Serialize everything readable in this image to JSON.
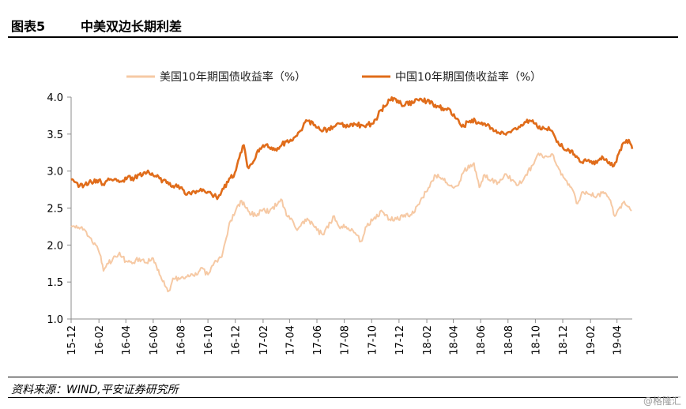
{
  "header": {
    "figure_no": "图表5",
    "title": "中美双边长期利差"
  },
  "source": "资料来源：WIND,平安证券研究所",
  "watermark": "@格隆汇",
  "chart_data": {
    "type": "line",
    "title": "中美双边长期利差",
    "xlabel": "",
    "ylabel": "",
    "ylim": [
      1.0,
      4.0
    ],
    "yticks": [
      "1.0",
      "1.5",
      "2.0",
      "2.5",
      "3.0",
      "3.5",
      "4.0"
    ],
    "xlim": [
      "2015-12-01",
      "2019-05-05"
    ],
    "xticks": [
      {
        "label": "15-12",
        "date": "2015-12-01"
      },
      {
        "label": "16-02",
        "date": "2016-02-01"
      },
      {
        "label": "16-04",
        "date": "2016-04-01"
      },
      {
        "label": "16-06",
        "date": "2016-06-01"
      },
      {
        "label": "16-08",
        "date": "2016-08-01"
      },
      {
        "label": "16-10",
        "date": "2016-10-01"
      },
      {
        "label": "16-12",
        "date": "2016-12-01"
      },
      {
        "label": "17-02",
        "date": "2017-02-01"
      },
      {
        "label": "17-04",
        "date": "2017-04-01"
      },
      {
        "label": "17-06",
        "date": "2017-06-01"
      },
      {
        "label": "17-08",
        "date": "2017-08-01"
      },
      {
        "label": "17-10",
        "date": "2017-10-01"
      },
      {
        "label": "17-12",
        "date": "2017-12-01"
      },
      {
        "label": "18-02",
        "date": "2018-02-01"
      },
      {
        "label": "18-04",
        "date": "2018-04-01"
      },
      {
        "label": "18-06",
        "date": "2018-06-01"
      },
      {
        "label": "18-08",
        "date": "2018-08-01"
      },
      {
        "label": "18-10",
        "date": "2018-10-01"
      },
      {
        "label": "18-12",
        "date": "2018-12-01"
      },
      {
        "label": "19-02",
        "date": "2019-02-01"
      },
      {
        "label": "19-04",
        "date": "2019-04-01"
      }
    ],
    "grid": false,
    "legend_position": "top",
    "series": [
      {
        "name": "美国10年期国债收益率（%）",
        "color": "#f6c9a4",
        "points": [
          [
            "2015-12-01",
            2.26
          ],
          [
            "2015-12-15",
            2.23
          ],
          [
            "2016-01-01",
            2.2
          ],
          [
            "2016-01-12",
            2.1
          ],
          [
            "2016-01-25",
            2.0
          ],
          [
            "2016-02-05",
            1.85
          ],
          [
            "2016-02-11",
            1.65
          ],
          [
            "2016-02-22",
            1.75
          ],
          [
            "2016-03-08",
            1.85
          ],
          [
            "2016-03-18",
            1.9
          ],
          [
            "2016-04-01",
            1.78
          ],
          [
            "2016-04-15",
            1.75
          ],
          [
            "2016-05-01",
            1.82
          ],
          [
            "2016-05-15",
            1.76
          ],
          [
            "2016-06-01",
            1.82
          ],
          [
            "2016-06-15",
            1.6
          ],
          [
            "2016-06-27",
            1.45
          ],
          [
            "2016-07-06",
            1.38
          ],
          [
            "2016-07-15",
            1.55
          ],
          [
            "2016-08-01",
            1.55
          ],
          [
            "2016-08-15",
            1.57
          ],
          [
            "2016-09-01",
            1.58
          ],
          [
            "2016-09-15",
            1.69
          ],
          [
            "2016-10-01",
            1.6
          ],
          [
            "2016-10-15",
            1.76
          ],
          [
            "2016-11-01",
            1.84
          ],
          [
            "2016-11-09",
            2.05
          ],
          [
            "2016-11-18",
            2.3
          ],
          [
            "2016-12-01",
            2.45
          ],
          [
            "2016-12-15",
            2.6
          ],
          [
            "2017-01-01",
            2.45
          ],
          [
            "2017-01-15",
            2.4
          ],
          [
            "2017-02-01",
            2.48
          ],
          [
            "2017-02-15",
            2.45
          ],
          [
            "2017-03-13",
            2.62
          ],
          [
            "2017-03-25",
            2.4
          ],
          [
            "2017-04-10",
            2.3
          ],
          [
            "2017-04-18",
            2.2
          ],
          [
            "2017-05-01",
            2.32
          ],
          [
            "2017-05-15",
            2.33
          ],
          [
            "2017-06-01",
            2.2
          ],
          [
            "2017-06-14",
            2.14
          ],
          [
            "2017-07-01",
            2.3
          ],
          [
            "2017-07-07",
            2.39
          ],
          [
            "2017-07-20",
            2.25
          ],
          [
            "2017-08-05",
            2.25
          ],
          [
            "2017-08-20",
            2.2
          ],
          [
            "2017-09-07",
            2.05
          ],
          [
            "2017-09-20",
            2.25
          ],
          [
            "2017-10-05",
            2.35
          ],
          [
            "2017-10-25",
            2.45
          ],
          [
            "2017-11-10",
            2.35
          ],
          [
            "2017-11-25",
            2.35
          ],
          [
            "2017-12-10",
            2.38
          ],
          [
            "2017-12-29",
            2.41
          ],
          [
            "2018-01-15",
            2.55
          ],
          [
            "2018-01-30",
            2.72
          ],
          [
            "2018-02-10",
            2.85
          ],
          [
            "2018-02-21",
            2.94
          ],
          [
            "2018-03-10",
            2.88
          ],
          [
            "2018-03-25",
            2.8
          ],
          [
            "2018-04-10",
            2.8
          ],
          [
            "2018-04-25",
            3.0
          ],
          [
            "2018-05-17",
            3.11
          ],
          [
            "2018-05-29",
            2.78
          ],
          [
            "2018-06-10",
            2.95
          ],
          [
            "2018-06-25",
            2.88
          ],
          [
            "2018-07-10",
            2.85
          ],
          [
            "2018-07-25",
            2.96
          ],
          [
            "2018-08-10",
            2.88
          ],
          [
            "2018-08-25",
            2.82
          ],
          [
            "2018-09-10",
            2.95
          ],
          [
            "2018-09-25",
            3.08
          ],
          [
            "2018-10-08",
            3.24
          ],
          [
            "2018-10-20",
            3.18
          ],
          [
            "2018-11-08",
            3.23
          ],
          [
            "2018-11-20",
            3.06
          ],
          [
            "2018-12-05",
            2.9
          ],
          [
            "2018-12-20",
            2.78
          ],
          [
            "2019-01-03",
            2.56
          ],
          [
            "2019-01-15",
            2.72
          ],
          [
            "2019-02-01",
            2.68
          ],
          [
            "2019-02-15",
            2.66
          ],
          [
            "2019-03-01",
            2.72
          ],
          [
            "2019-03-15",
            2.62
          ],
          [
            "2019-03-27",
            2.39
          ],
          [
            "2019-04-10",
            2.5
          ],
          [
            "2019-04-17",
            2.59
          ],
          [
            "2019-04-25",
            2.52
          ],
          [
            "2019-05-03",
            2.46
          ]
        ]
      },
      {
        "name": "中国10年期国债收益率（%）",
        "color": "#e06c1a",
        "points": [
          [
            "2015-12-01",
            2.88
          ],
          [
            "2015-12-10",
            2.85
          ],
          [
            "2015-12-20",
            2.8
          ],
          [
            "2016-01-01",
            2.82
          ],
          [
            "2016-01-15",
            2.85
          ],
          [
            "2016-02-01",
            2.88
          ],
          [
            "2016-02-10",
            2.82
          ],
          [
            "2016-02-22",
            2.9
          ],
          [
            "2016-03-05",
            2.88
          ],
          [
            "2016-03-20",
            2.86
          ],
          [
            "2016-04-05",
            2.92
          ],
          [
            "2016-04-20",
            2.9
          ],
          [
            "2016-05-01",
            2.95
          ],
          [
            "2016-05-18",
            2.98
          ],
          [
            "2016-06-01",
            2.94
          ],
          [
            "2016-06-15",
            2.9
          ],
          [
            "2016-07-01",
            2.84
          ],
          [
            "2016-07-15",
            2.8
          ],
          [
            "2016-08-01",
            2.78
          ],
          [
            "2016-08-15",
            2.68
          ],
          [
            "2016-09-01",
            2.72
          ],
          [
            "2016-09-15",
            2.76
          ],
          [
            "2016-10-01",
            2.72
          ],
          [
            "2016-10-15",
            2.67
          ],
          [
            "2016-10-24",
            2.65
          ],
          [
            "2016-11-05",
            2.76
          ],
          [
            "2016-11-15",
            2.85
          ],
          [
            "2016-11-30",
            2.98
          ],
          [
            "2016-12-10",
            3.18
          ],
          [
            "2016-12-20",
            3.35
          ],
          [
            "2016-12-28",
            3.06
          ],
          [
            "2017-01-08",
            3.1
          ],
          [
            "2017-01-20",
            3.28
          ],
          [
            "2017-02-01",
            3.35
          ],
          [
            "2017-02-15",
            3.32
          ],
          [
            "2017-03-01",
            3.3
          ],
          [
            "2017-03-15",
            3.36
          ],
          [
            "2017-04-01",
            3.4
          ],
          [
            "2017-04-20",
            3.52
          ],
          [
            "2017-05-01",
            3.6
          ],
          [
            "2017-05-10",
            3.68
          ],
          [
            "2017-05-25",
            3.62
          ],
          [
            "2017-06-10",
            3.55
          ],
          [
            "2017-06-25",
            3.56
          ],
          [
            "2017-07-10",
            3.6
          ],
          [
            "2017-07-25",
            3.64
          ],
          [
            "2017-08-10",
            3.6
          ],
          [
            "2017-08-25",
            3.63
          ],
          [
            "2017-09-10",
            3.62
          ],
          [
            "2017-09-30",
            3.64
          ],
          [
            "2017-10-10",
            3.7
          ],
          [
            "2017-10-20",
            3.82
          ],
          [
            "2017-11-01",
            3.88
          ],
          [
            "2017-11-10",
            3.96
          ],
          [
            "2017-11-22",
            3.98
          ],
          [
            "2017-12-01",
            3.92
          ],
          [
            "2017-12-15",
            3.9
          ],
          [
            "2018-01-01",
            3.92
          ],
          [
            "2018-01-17",
            3.98
          ],
          [
            "2018-02-01",
            3.94
          ],
          [
            "2018-02-15",
            3.9
          ],
          [
            "2018-03-01",
            3.86
          ],
          [
            "2018-03-20",
            3.85
          ],
          [
            "2018-04-05",
            3.72
          ],
          [
            "2018-04-20",
            3.6
          ],
          [
            "2018-05-05",
            3.66
          ],
          [
            "2018-05-20",
            3.68
          ],
          [
            "2018-06-01",
            3.64
          ],
          [
            "2018-06-15",
            3.62
          ],
          [
            "2018-06-30",
            3.54
          ],
          [
            "2018-07-15",
            3.5
          ],
          [
            "2018-07-30",
            3.52
          ],
          [
            "2018-08-10",
            3.55
          ],
          [
            "2018-08-25",
            3.6
          ],
          [
            "2018-09-10",
            3.66
          ],
          [
            "2018-09-20",
            3.68
          ],
          [
            "2018-10-05",
            3.6
          ],
          [
            "2018-10-20",
            3.58
          ],
          [
            "2018-11-05",
            3.55
          ],
          [
            "2018-11-20",
            3.4
          ],
          [
            "2018-12-01",
            3.32
          ],
          [
            "2018-12-15",
            3.28
          ],
          [
            "2019-01-01",
            3.2
          ],
          [
            "2019-01-10",
            3.12
          ],
          [
            "2019-01-25",
            3.14
          ],
          [
            "2019-02-05",
            3.1
          ],
          [
            "2019-02-20",
            3.15
          ],
          [
            "2019-03-01",
            3.18
          ],
          [
            "2019-03-15",
            3.12
          ],
          [
            "2019-03-25",
            3.07
          ],
          [
            "2019-04-05",
            3.24
          ],
          [
            "2019-04-15",
            3.38
          ],
          [
            "2019-04-22",
            3.42
          ],
          [
            "2019-04-30",
            3.38
          ],
          [
            "2019-05-05",
            3.3
          ]
        ]
      }
    ]
  }
}
